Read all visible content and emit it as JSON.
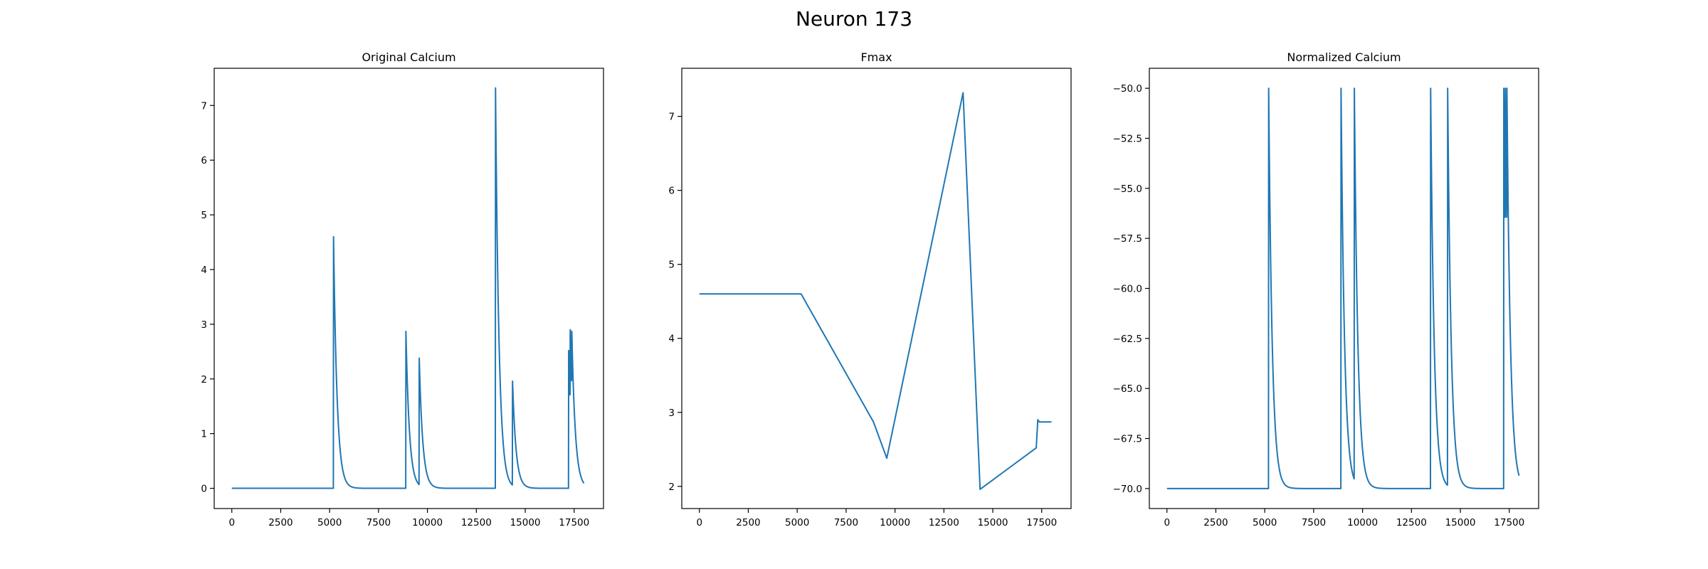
{
  "figure": {
    "title": "Neuron 173"
  },
  "chart_data": [
    {
      "type": "line",
      "title": "Original Calcium",
      "xlabel": "",
      "ylabel": "",
      "xlim": [
        -900,
        19000
      ],
      "ylim": [
        -0.37,
        7.68
      ],
      "xticks": [
        0,
        2500,
        5000,
        7500,
        10000,
        12500,
        15000,
        17500
      ],
      "yticks": [
        0,
        1,
        2,
        3,
        4,
        5,
        6,
        7
      ],
      "ytick_labels": [
        "0",
        "1",
        "2",
        "3",
        "4",
        "5",
        "6",
        "7"
      ],
      "grid": false,
      "events": [
        {
          "t": 5200,
          "peak": 4.6
        },
        {
          "t": 8900,
          "peak": 2.87
        },
        {
          "t": 9580,
          "peak": 2.38
        },
        {
          "t": 13480,
          "peak": 7.32
        },
        {
          "t": 14350,
          "peak": 1.96
        },
        {
          "t": 17220,
          "peak": 2.52
        },
        {
          "t": 17300,
          "peak": 2.9
        },
        {
          "t": 17380,
          "peak": 2.87
        }
      ],
      "decay": 180,
      "x_end": 18000
    },
    {
      "type": "line",
      "title": "Fmax",
      "xlabel": "",
      "ylabel": "",
      "xlim": [
        -900,
        19000
      ],
      "ylim": [
        1.7,
        7.65
      ],
      "xticks": [
        0,
        2500,
        5000,
        7500,
        10000,
        12500,
        15000,
        17500
      ],
      "yticks": [
        2,
        3,
        4,
        5,
        6,
        7
      ],
      "ytick_labels": [
        "2",
        "3",
        "4",
        "5",
        "6",
        "7"
      ],
      "grid": false,
      "points": [
        [
          0,
          4.6
        ],
        [
          5200,
          4.6
        ],
        [
          8900,
          2.87
        ],
        [
          9580,
          2.38
        ],
        [
          13480,
          7.32
        ],
        [
          14350,
          1.96
        ],
        [
          17220,
          2.52
        ],
        [
          17300,
          2.9
        ],
        [
          17380,
          2.87
        ],
        [
          18000,
          2.87
        ]
      ]
    },
    {
      "type": "line",
      "title": "Normalized Calcium",
      "xlabel": "",
      "ylabel": "",
      "xlim": [
        -900,
        19000
      ],
      "ylim": [
        -71.0,
        -49.0
      ],
      "xticks": [
        0,
        2500,
        5000,
        7500,
        10000,
        12500,
        15000,
        17500
      ],
      "yticks": [
        -50.0,
        -52.5,
        -55.0,
        -57.5,
        -60.0,
        -62.5,
        -65.0,
        -67.5,
        -70.0
      ],
      "ytick_labels": [
        "−50.0",
        "−52.5",
        "−55.0",
        "−57.5",
        "−60.0",
        "−62.5",
        "−65.0",
        "−67.5",
        "−70.0"
      ],
      "grid": false,
      "baseline": -70,
      "events": [
        {
          "t": 5200,
          "peak": -50.0
        },
        {
          "t": 8900,
          "peak": -50.0
        },
        {
          "t": 9580,
          "peak": -50.0
        },
        {
          "t": 13480,
          "peak": -50.0
        },
        {
          "t": 14350,
          "peak": -50.0
        },
        {
          "t": 17220,
          "peak": -50.0
        },
        {
          "t": 17300,
          "peak": -50.0
        },
        {
          "t": 17380,
          "peak": -50.0
        }
      ],
      "decay": 180,
      "x_end": 18000
    }
  ]
}
